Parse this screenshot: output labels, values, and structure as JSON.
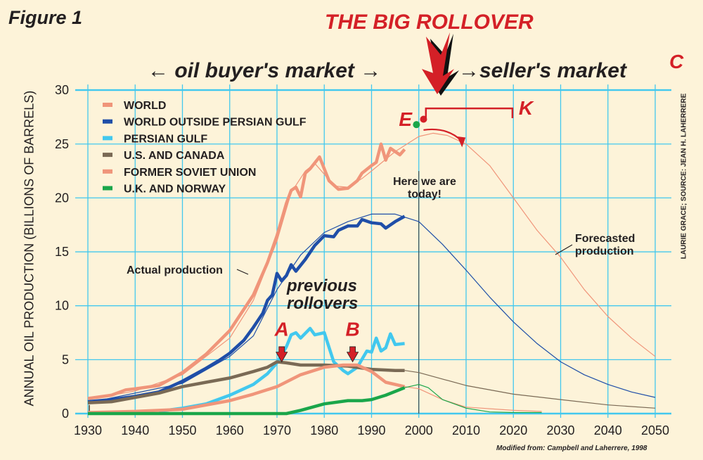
{
  "chart_data": {
    "type": "line",
    "figure_label": "Figure 1",
    "title": "THE BIG ROLLOVER",
    "buyer_label": "oil buyer's market",
    "seller_label": "seller's market",
    "corner_letter": "C",
    "ylabel": "ANNUAL OIL PRODUCTION (BILLIONS OF BARRELS)",
    "xlabel": "",
    "xlim": [
      1930,
      2050
    ],
    "ylim": [
      0,
      30
    ],
    "x_ticks": [
      1930,
      1940,
      1950,
      1960,
      1970,
      1980,
      1990,
      2000,
      2010,
      2020,
      2030,
      2040,
      2050
    ],
    "y_ticks": [
      0,
      5,
      10,
      15,
      20,
      25,
      30
    ],
    "grid": true,
    "legend_position": "top-left",
    "series": [
      {
        "name": "WORLD",
        "color": "#f0957a",
        "style": "actual",
        "points": [
          [
            1930,
            1.4
          ],
          [
            1935,
            1.7
          ],
          [
            1938,
            2.2
          ],
          [
            1940,
            2.3
          ],
          [
            1945,
            2.6
          ],
          [
            1950,
            3.8
          ],
          [
            1955,
            5.5
          ],
          [
            1960,
            7.7
          ],
          [
            1965,
            11
          ],
          [
            1968,
            14
          ],
          [
            1970,
            16.5
          ],
          [
            1972,
            19.5
          ],
          [
            1973,
            20.7
          ],
          [
            1974,
            21
          ],
          [
            1975,
            20.1
          ],
          [
            1976,
            22.3
          ],
          [
            1977,
            22.7
          ],
          [
            1979,
            23.8
          ],
          [
            1981,
            21.6
          ],
          [
            1983,
            20.8
          ],
          [
            1985,
            20.9
          ],
          [
            1987,
            21.6
          ],
          [
            1988,
            22.3
          ],
          [
            1990,
            23
          ],
          [
            1991,
            23.3
          ],
          [
            1992,
            25
          ],
          [
            1993,
            23.5
          ],
          [
            1994,
            24.6
          ],
          [
            1995,
            24.3
          ],
          [
            1996,
            24
          ],
          [
            1997,
            24.5
          ]
        ]
      },
      {
        "name": "WORLD (forecast)",
        "color": "#f0957a",
        "style": "forecast",
        "points": [
          [
            1930,
            1.3
          ],
          [
            1940,
            2.1
          ],
          [
            1950,
            3.6
          ],
          [
            1960,
            7
          ],
          [
            1965,
            10.5
          ],
          [
            1970,
            16
          ],
          [
            1973,
            20.5
          ],
          [
            1976,
            22.5
          ],
          [
            1978,
            23.2
          ],
          [
            1980,
            22.2
          ],
          [
            1982,
            21.1
          ],
          [
            1985,
            21
          ],
          [
            1988,
            21.8
          ],
          [
            1990,
            22.5
          ],
          [
            1995,
            24.3
          ],
          [
            2000,
            25.7
          ],
          [
            2003,
            26
          ],
          [
            2006,
            25.8
          ],
          [
            2010,
            25
          ],
          [
            2015,
            23
          ],
          [
            2020,
            20
          ],
          [
            2025,
            17
          ],
          [
            2030,
            14.5
          ],
          [
            2035,
            11.5
          ],
          [
            2040,
            9
          ],
          [
            2045,
            7
          ],
          [
            2050,
            5.3
          ]
        ]
      },
      {
        "name": "WORLD OUTSIDE PERSIAN GULF",
        "color": "#1f4ea8",
        "style": "actual",
        "points": [
          [
            1930,
            1.1
          ],
          [
            1935,
            1.3
          ],
          [
            1940,
            1.6
          ],
          [
            1945,
            2
          ],
          [
            1950,
            3
          ],
          [
            1955,
            4.2
          ],
          [
            1958,
            5
          ],
          [
            1960,
            5.6
          ],
          [
            1963,
            6.8
          ],
          [
            1965,
            8
          ],
          [
            1967,
            9.3
          ],
          [
            1968,
            10.5
          ],
          [
            1969,
            11
          ],
          [
            1970,
            13
          ],
          [
            1971,
            12.3
          ],
          [
            1972,
            12.8
          ],
          [
            1973,
            13.8
          ],
          [
            1974,
            13.2
          ],
          [
            1976,
            14.3
          ],
          [
            1978,
            15.6
          ],
          [
            1980,
            16.5
          ],
          [
            1982,
            16.4
          ],
          [
            1983,
            17
          ],
          [
            1985,
            17.4
          ],
          [
            1987,
            17.4
          ],
          [
            1988,
            18
          ],
          [
            1990,
            17.7
          ],
          [
            1992,
            17.6
          ],
          [
            1993,
            17.2
          ],
          [
            1995,
            17.8
          ],
          [
            1997,
            18.3
          ]
        ]
      },
      {
        "name": "WORLD OUTSIDE PERSIAN GULF (forecast)",
        "color": "#1f4ea8",
        "style": "forecast",
        "points": [
          [
            1930,
            1
          ],
          [
            1950,
            2.8
          ],
          [
            1960,
            5.3
          ],
          [
            1965,
            7.2
          ],
          [
            1970,
            11.5
          ],
          [
            1975,
            14.7
          ],
          [
            1980,
            16.8
          ],
          [
            1985,
            17.8
          ],
          [
            1990,
            18.5
          ],
          [
            1995,
            18.5
          ],
          [
            2000,
            17.8
          ],
          [
            2005,
            15.7
          ],
          [
            2010,
            13.3
          ],
          [
            2015,
            10.8
          ],
          [
            2020,
            8.5
          ],
          [
            2025,
            6.5
          ],
          [
            2030,
            4.8
          ],
          [
            2035,
            3.6
          ],
          [
            2040,
            2.7
          ],
          [
            2045,
            2
          ],
          [
            2050,
            1.5
          ]
        ]
      },
      {
        "name": "PERSIAN GULF",
        "color": "#42c8ee",
        "style": "actual",
        "points": [
          [
            1945,
            0.2
          ],
          [
            1950,
            0.5
          ],
          [
            1955,
            0.9
          ],
          [
            1960,
            1.7
          ],
          [
            1965,
            2.7
          ],
          [
            1968,
            3.7
          ],
          [
            1970,
            4.7
          ],
          [
            1972,
            6.2
          ],
          [
            1973,
            7.3
          ],
          [
            1974,
            7.5
          ],
          [
            1975,
            7
          ],
          [
            1977,
            7.9
          ],
          [
            1978,
            7.3
          ],
          [
            1980,
            7.5
          ],
          [
            1982,
            4.8
          ],
          [
            1984,
            4
          ],
          [
            1985,
            3.7
          ],
          [
            1987,
            4.3
          ],
          [
            1989,
            5.8
          ],
          [
            1990,
            5.7
          ],
          [
            1991,
            7
          ],
          [
            1992,
            5.8
          ],
          [
            1993,
            6.1
          ],
          [
            1994,
            7.4
          ],
          [
            1995,
            6.4
          ],
          [
            1997,
            6.5
          ]
        ]
      },
      {
        "name": "U.S. AND CANADA",
        "color": "#7a6a55",
        "style": "actual",
        "points": [
          [
            1930,
            1
          ],
          [
            1935,
            1.1
          ],
          [
            1940,
            1.5
          ],
          [
            1945,
            1.9
          ],
          [
            1950,
            2.5
          ],
          [
            1955,
            2.9
          ],
          [
            1960,
            3.3
          ],
          [
            1965,
            3.9
          ],
          [
            1968,
            4.3
          ],
          [
            1970,
            4.8
          ],
          [
            1972,
            4.7
          ],
          [
            1975,
            4.5
          ],
          [
            1980,
            4.5
          ],
          [
            1985,
            4.4
          ],
          [
            1990,
            4.1
          ],
          [
            1995,
            4
          ],
          [
            1997,
            4
          ]
        ]
      },
      {
        "name": "U.S. AND CANADA (forecast)",
        "color": "#7a6a55",
        "style": "forecast",
        "points": [
          [
            1997,
            4
          ],
          [
            2000,
            3.8
          ],
          [
            2005,
            3.2
          ],
          [
            2010,
            2.6
          ],
          [
            2020,
            1.8
          ],
          [
            2030,
            1.3
          ],
          [
            2040,
            0.8
          ],
          [
            2050,
            0.5
          ]
        ]
      },
      {
        "name": "FORMER SOVIET UNION",
        "color": "#f0957a",
        "style": "actual",
        "points": [
          [
            1930,
            0.1
          ],
          [
            1940,
            0.2
          ],
          [
            1950,
            0.4
          ],
          [
            1960,
            1.2
          ],
          [
            1965,
            1.8
          ],
          [
            1970,
            2.5
          ],
          [
            1975,
            3.6
          ],
          [
            1980,
            4.3
          ],
          [
            1984,
            4.5
          ],
          [
            1987,
            4.5
          ],
          [
            1990,
            3.9
          ],
          [
            1993,
            2.9
          ],
          [
            1997,
            2.5
          ]
        ]
      },
      {
        "name": "FORMER SOVIET UNION (forecast)",
        "color": "#f0957a",
        "style": "forecast",
        "points": [
          [
            1997,
            2.5
          ],
          [
            2000,
            2.3
          ],
          [
            2005,
            1.3
          ],
          [
            2010,
            0.6
          ],
          [
            2020,
            0.3
          ],
          [
            2026,
            0.2
          ]
        ]
      },
      {
        "name": "U.K. AND NORWAY",
        "color": "#1aa64a",
        "style": "actual",
        "points": [
          [
            1930,
            0
          ],
          [
            1972,
            0
          ],
          [
            1975,
            0.3
          ],
          [
            1980,
            0.9
          ],
          [
            1985,
            1.2
          ],
          [
            1988,
            1.2
          ],
          [
            1990,
            1.3
          ],
          [
            1993,
            1.7
          ],
          [
            1997,
            2.4
          ]
        ]
      },
      {
        "name": "U.K. AND NORWAY (forecast)",
        "color": "#1aa64a",
        "style": "forecast",
        "points": [
          [
            1997,
            2.4
          ],
          [
            2000,
            2.7
          ],
          [
            2002,
            2.4
          ],
          [
            2005,
            1.3
          ],
          [
            2010,
            0.5
          ],
          [
            2015,
            0.15
          ],
          [
            2020,
            0.1
          ],
          [
            2026,
            0.1
          ]
        ]
      }
    ],
    "legend": [
      {
        "label": "WORLD",
        "color": "#f0957a"
      },
      {
        "label": "WORLD OUTSIDE PERSIAN GULF",
        "color": "#1f4ea8"
      },
      {
        "label": "PERSIAN GULF",
        "color": "#42c8ee"
      },
      {
        "label": "U.S. AND CANADA",
        "color": "#7a6a55"
      },
      {
        "label": "FORMER SOVIET UNION",
        "color": "#f0957a"
      },
      {
        "label": "U.K. AND NORWAY",
        "color": "#1aa64a"
      }
    ],
    "annotations": {
      "actual_production": "Actual production",
      "forecasted_1": "Forecasted",
      "forecasted_2": "production",
      "previous_1": "previous",
      "previous_2": "rollovers",
      "today_1": "Here we are",
      "today_2": "today!",
      "A": "A",
      "A_year": 1971,
      "B": "B",
      "B_year": 1986,
      "E": "E",
      "K": "K"
    },
    "credit": "LAURIE GRACE; SOURCE: JEAN H. LAHERRERE",
    "source": "Modified from: Campbell and Laherrere, 1998"
  },
  "colors": {
    "grid": "#42c8ee",
    "accent": "#d42027",
    "text": "#231f20",
    "background": "#fdf3d9"
  }
}
